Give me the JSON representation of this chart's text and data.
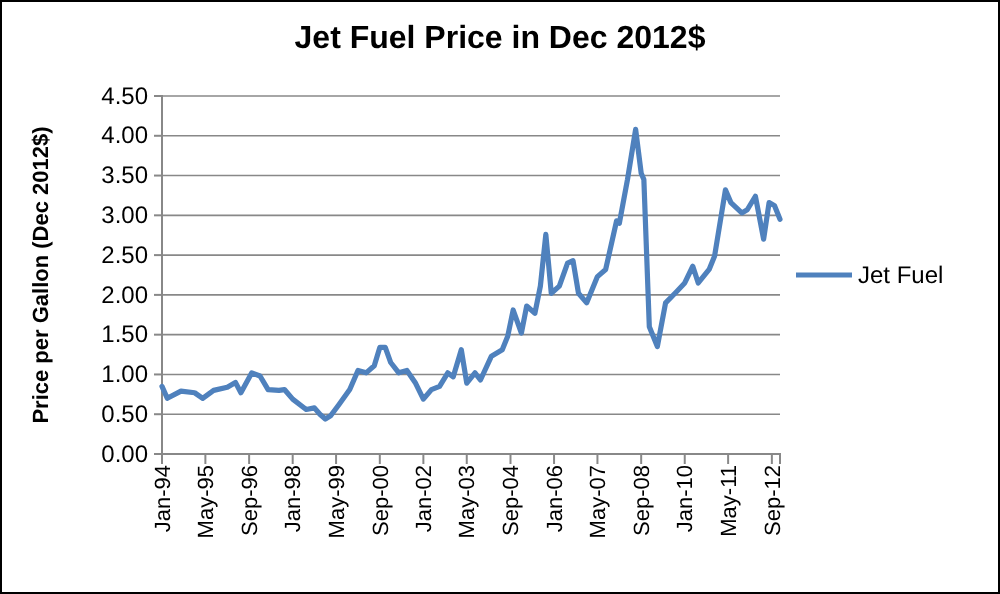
{
  "chart_data": {
    "type": "line",
    "title": "Jet Fuel Price in Dec 2012$",
    "ylabel": "Price per Gallon (Dec 2012$)",
    "x": [
      "1994-01",
      "1994-03",
      "1994-08",
      "1995-01",
      "1995-04",
      "1995-08",
      "1996-01",
      "1996-04",
      "1996-06",
      "1996-10",
      "1997-01",
      "1997-04",
      "1997-08",
      "1997-10",
      "1998-01",
      "1998-06",
      "1998-09",
      "1998-11",
      "1999-01",
      "1999-03",
      "1999-06",
      "1999-10",
      "2000-01",
      "2000-04",
      "2000-07",
      "2000-09",
      "2000-11",
      "2001-01",
      "2001-04",
      "2001-07",
      "2001-10",
      "2002-01",
      "2002-04",
      "2002-07",
      "2002-10",
      "2002-12",
      "2003-03",
      "2003-05",
      "2003-08",
      "2003-10",
      "2004-02",
      "2004-06",
      "2004-08",
      "2004-10",
      "2005-01",
      "2005-03",
      "2005-06",
      "2005-08",
      "2005-10",
      "2005-12",
      "2006-03",
      "2006-06",
      "2006-08",
      "2006-10",
      "2007-01",
      "2007-05",
      "2007-08",
      "2007-12",
      "2008-01",
      "2008-04",
      "2008-07",
      "2008-09",
      "2008-10",
      "2008-12",
      "2009-03",
      "2009-06",
      "2009-10",
      "2010-01",
      "2010-04",
      "2010-06",
      "2010-10",
      "2010-12",
      "2011-04",
      "2011-06",
      "2011-10",
      "2011-12",
      "2012-03",
      "2012-06",
      "2012-08",
      "2012-10",
      "2012-12"
    ],
    "series": [
      {
        "name": "Jet Fuel",
        "color": "#4f81bd",
        "values": [
          0.85,
          0.7,
          0.79,
          0.77,
          0.7,
          0.8,
          0.84,
          0.9,
          0.77,
          1.02,
          0.98,
          0.81,
          0.8,
          0.81,
          0.69,
          0.56,
          0.58,
          0.5,
          0.44,
          0.48,
          0.62,
          0.81,
          1.05,
          1.02,
          1.11,
          1.34,
          1.34,
          1.15,
          1.02,
          1.05,
          0.9,
          0.69,
          0.81,
          0.85,
          1.02,
          0.97,
          1.31,
          0.89,
          1.02,
          0.93,
          1.23,
          1.31,
          1.48,
          1.81,
          1.52,
          1.86,
          1.77,
          2.11,
          2.76,
          2.02,
          2.11,
          2.4,
          2.43,
          2.02,
          1.9,
          2.23,
          2.32,
          2.93,
          2.9,
          3.45,
          4.08,
          3.53,
          3.45,
          1.6,
          1.35,
          1.9,
          2.04,
          2.15,
          2.36,
          2.15,
          2.32,
          2.49,
          3.32,
          3.16,
          3.03,
          3.07,
          3.24,
          2.7,
          3.16,
          3.12,
          2.95
        ]
      }
    ],
    "xlim": [
      "1994-01",
      "2012-12"
    ],
    "xticks": [
      {
        "value": "1994-01",
        "label": "Jan-94"
      },
      {
        "value": "1995-05",
        "label": "May-95"
      },
      {
        "value": "1996-09",
        "label": "Sep-96"
      },
      {
        "value": "1998-01",
        "label": "Jan-98"
      },
      {
        "value": "1999-05",
        "label": "May-99"
      },
      {
        "value": "2000-09",
        "label": "Sep-00"
      },
      {
        "value": "2002-01",
        "label": "Jan-02"
      },
      {
        "value": "2003-05",
        "label": "May-03"
      },
      {
        "value": "2004-09",
        "label": "Sep-04"
      },
      {
        "value": "2006-01",
        "label": "Jan-06"
      },
      {
        "value": "2007-05",
        "label": "May-07"
      },
      {
        "value": "2008-09",
        "label": "Sep-08"
      },
      {
        "value": "2010-01",
        "label": "Jan-10"
      },
      {
        "value": "2011-05",
        "label": "May-11"
      },
      {
        "value": "2012-09",
        "label": "Sep-12"
      }
    ],
    "ylim": [
      0,
      4.5
    ],
    "yticks": [
      {
        "value": 0,
        "label": "0.00"
      },
      {
        "value": 0.5,
        "label": "0.50"
      },
      {
        "value": 1,
        "label": "1.00"
      },
      {
        "value": 1.5,
        "label": "1.50"
      },
      {
        "value": 2,
        "label": "2.00"
      },
      {
        "value": 2.5,
        "label": "2.50"
      },
      {
        "value": 3,
        "label": "3.00"
      },
      {
        "value": 3.5,
        "label": "3.50"
      },
      {
        "value": 4,
        "label": "4.00"
      },
      {
        "value": 4.5,
        "label": "4.50"
      }
    ],
    "grid": "y",
    "legend": "right",
    "marker": "none",
    "line_style": "solid"
  }
}
